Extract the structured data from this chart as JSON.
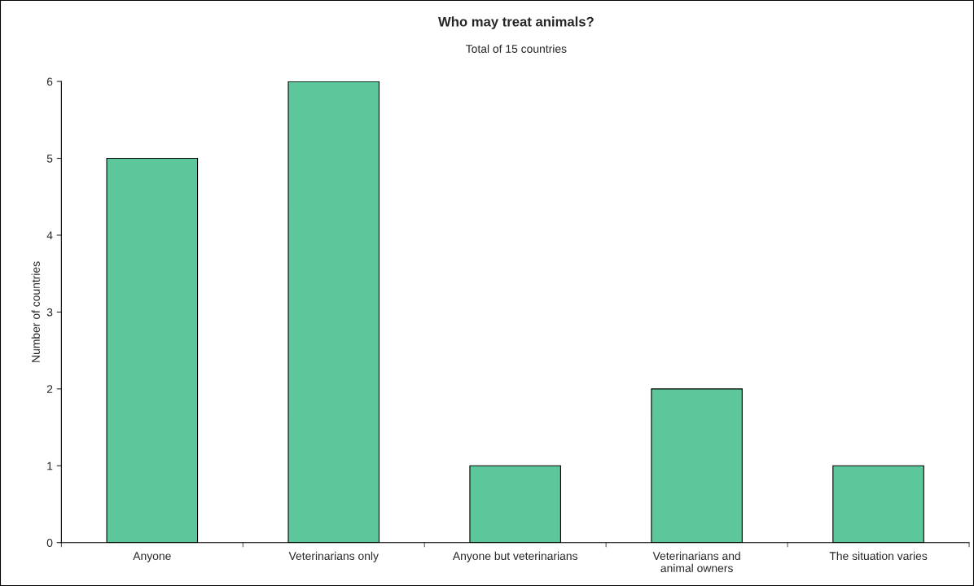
{
  "chart_data": {
    "type": "bar",
    "title": "Who may treat animals?",
    "subtitle": "Total of 15 countries",
    "ylabel": "Number of countries",
    "categories": [
      "Anyone",
      "Veterinarians only",
      "Anyone but veterinarians",
      "Veterinarians and\nanimal owners",
      "The situation varies"
    ],
    "values": [
      5,
      6,
      1,
      2,
      1
    ],
    "color": "#5cc79a",
    "ylim": [
      0,
      6
    ],
    "yticks": [
      0,
      1,
      2,
      3,
      4,
      5,
      6
    ],
    "grid": false
  }
}
